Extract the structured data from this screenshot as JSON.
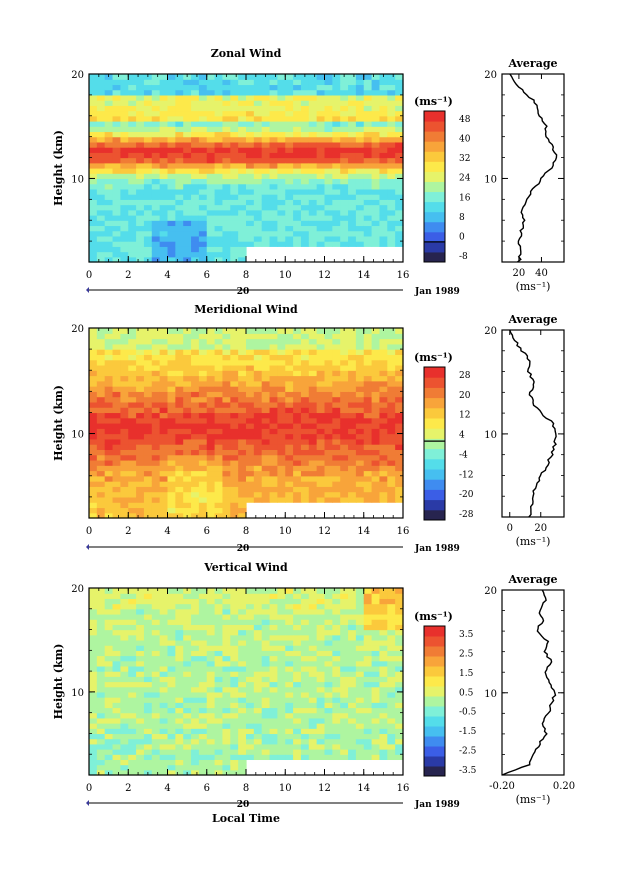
{
  "figure": {
    "xlabel": "Local Time",
    "date_label": "Jan 1989",
    "day_label": "20",
    "unit_label": "(ms⁻¹)",
    "average_title": "Average",
    "ylabel": "Height (km)"
  },
  "colormap": [
    "#27244f",
    "#2a3aa6",
    "#3b5ee6",
    "#3f8cf0",
    "#46bff0",
    "#54ddea",
    "#7ff0d8",
    "#aef5a0",
    "#e6f36a",
    "#fde94a",
    "#fbc93c",
    "#f8a43a",
    "#f07c35",
    "#ec5330",
    "#e8302c",
    "#e8302c"
  ],
  "chart_data": [
    {
      "type": "heatmap",
      "title": "Zonal Wind",
      "xlabel": "",
      "ylabel": "Height (km)",
      "x_ticks": [
        "0",
        "2",
        "4",
        "6",
        "8",
        "10",
        "12",
        "14",
        "16"
      ],
      "y_ticks": [
        "10",
        "20"
      ],
      "xlim": [
        0,
        16
      ],
      "ylim": [
        2,
        20
      ],
      "colorbar": {
        "ticks": [
          "48",
          "40",
          "32",
          "24",
          "16",
          "8",
          "0",
          "-8"
        ],
        "range": [
          -8,
          52
        ],
        "zero_line": 0
      },
      "profile": {
        "title": "Average",
        "x_ticks": [
          "20",
          "40"
        ],
        "xlim": [
          5,
          60
        ],
        "y_ticks": [
          "10",
          "20"
        ],
        "unit": "(ms⁻¹)",
        "heights": [
          2,
          3,
          4,
          5,
          6,
          7,
          8,
          9,
          10,
          11,
          12,
          13,
          14,
          15,
          16,
          17,
          18,
          19,
          20
        ],
        "values": [
          20,
          22,
          20,
          22,
          24,
          22,
          28,
          33,
          40,
          48,
          53,
          50,
          45,
          44,
          38,
          37,
          28,
          18,
          12
        ]
      },
      "field": {
        "core_height": 12.5,
        "core_value": 50,
        "core_width": 1.8,
        "lower_height": 5,
        "lower_value": 16,
        "upper_value": 26,
        "top_value": 14
      }
    },
    {
      "type": "heatmap",
      "title": "Meridional Wind",
      "xlabel": "",
      "ylabel": "Height (km)",
      "x_ticks": [
        "0",
        "2",
        "4",
        "6",
        "8",
        "10",
        "12",
        "14",
        "16"
      ],
      "y_ticks": [
        "10",
        "20"
      ],
      "xlim": [
        0,
        16
      ],
      "ylim": [
        2,
        20
      ],
      "colorbar": {
        "ticks": [
          "28",
          "20",
          "12",
          "4",
          "-4",
          "-12",
          "-20",
          "-28"
        ],
        "range": [
          -30,
          34
        ],
        "zero_line": 3
      },
      "profile": {
        "title": "Average",
        "x_ticks": [
          "0",
          "20"
        ],
        "xlim": [
          -5,
          35
        ],
        "y_ticks": [
          "10",
          "20"
        ],
        "unit": "(ms⁻¹)",
        "heights": [
          2,
          3,
          4,
          5,
          6,
          7,
          8,
          9,
          10,
          11,
          12,
          13,
          14,
          15,
          16,
          17,
          18,
          19,
          20
        ],
        "values": [
          13,
          14,
          15,
          17,
          20,
          24,
          27,
          29,
          30,
          28,
          20,
          15,
          13,
          16,
          12,
          13,
          8,
          3,
          0
        ]
      },
      "field": {
        "core_height": 10.5,
        "core_value": 30,
        "core_width": 3.5,
        "lower_height": 5,
        "lower_value": 16,
        "upper_value": 8,
        "top_value": 4
      }
    },
    {
      "type": "heatmap",
      "title": "Vertical Wind",
      "xlabel": "Local Time",
      "ylabel": "Height (km)",
      "x_ticks": [
        "0",
        "2",
        "4",
        "6",
        "8",
        "10",
        "12",
        "14",
        "16"
      ],
      "y_ticks": [
        "10",
        "20"
      ],
      "xlim": [
        0,
        16
      ],
      "ylim": [
        2,
        20
      ],
      "colorbar": {
        "ticks": [
          "3.5",
          "2.5",
          "1.5",
          "0.5",
          "-0.5",
          "-1.5",
          "-2.5",
          "-3.5"
        ],
        "range": [
          -3.8,
          4.2
        ],
        "zero_line": null
      },
      "profile": {
        "title": "Average",
        "x_ticks": [
          "-0.20",
          "0.20"
        ],
        "xlim": [
          -0.2,
          0.2
        ],
        "y_ticks": [
          "10",
          "20"
        ],
        "unit": "(ms⁻¹)",
        "heights": [
          2,
          3,
          4,
          5,
          6,
          7,
          8,
          9,
          10,
          11,
          12,
          13,
          14,
          15,
          16,
          17,
          18,
          19,
          20
        ],
        "values": [
          -0.19,
          -0.03,
          0.0,
          0.04,
          0.08,
          0.06,
          0.1,
          0.12,
          0.15,
          0.1,
          0.08,
          0.12,
          0.07,
          0.1,
          0.02,
          0.06,
          0.04,
          0.08,
          0.06
        ]
      },
      "field": {
        "core_height": 10,
        "core_value": 0.3,
        "core_width": 4,
        "lower_height": 5,
        "lower_value": 0.1,
        "upper_value": 0.4,
        "top_value": 0.6
      }
    }
  ]
}
